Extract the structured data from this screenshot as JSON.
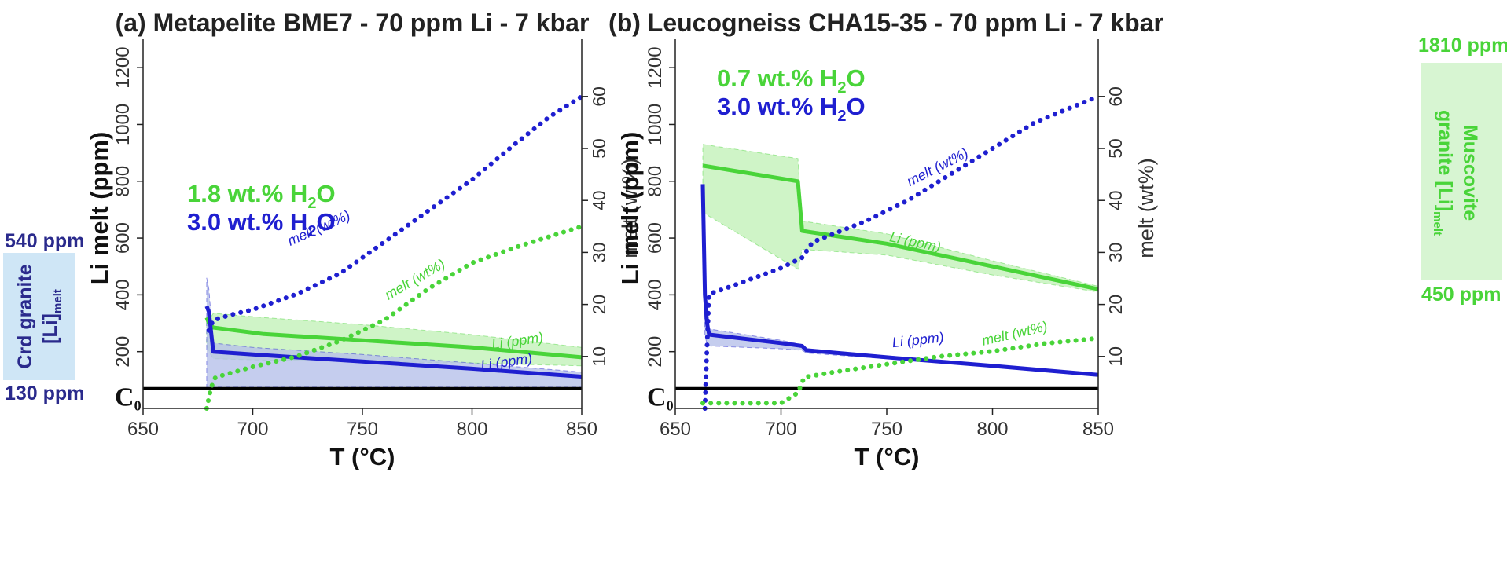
{
  "colors": {
    "green": "#49d439",
    "blue": "#1f1fd0",
    "navy": "#2a2a8c",
    "green_fill": "#bff0b4",
    "blue_fill": "#b7c0ea",
    "side_fill": "#cfe6f6"
  },
  "c0": {
    "label_main": "C",
    "label_sub": "0",
    "value": 70
  },
  "side_left": {
    "top_value": "540 ppm",
    "bottom_value": "130 ppm",
    "label_line1": "Crd granite",
    "label_line2_main": "[Li]",
    "label_line2_sub": "melt",
    "range": [
      130,
      540
    ]
  },
  "side_right": {
    "top_value": "1810 ppm",
    "bottom_value": "450 ppm",
    "label_line1": "Muscovite",
    "label_line2_main": "granite [Li]",
    "label_line2_sub": "melt",
    "range": [
      450,
      1810
    ]
  },
  "chart_data": [
    {
      "type": "line",
      "panel": "a",
      "title": "(a) Metapelite BME7 - 70 ppm Li - 7 kbar",
      "xlabel": "T (°C)",
      "ylabel": "Li melt (ppm)",
      "y2label": "melt (wt%)",
      "xlim": [
        650,
        850
      ],
      "ylim": [
        0,
        1300
      ],
      "y2lim": [
        0,
        71
      ],
      "xticks": [
        650,
        700,
        750,
        800,
        850
      ],
      "yticks": [
        200,
        400,
        600,
        800,
        1000,
        1200
      ],
      "y2ticks": [
        10,
        20,
        30,
        40,
        50,
        60
      ],
      "legend": [
        {
          "main": "1.8 wt.% H",
          "sub": "2",
          "tail": "O",
          "color_key": "green"
        },
        {
          "main": "3.0 wt.% H",
          "sub": "2",
          "tail": "O",
          "color_key": "blue"
        }
      ],
      "legend_position": "middle-left",
      "annotations": [
        {
          "text": "melt (wt%)",
          "color_key": "blue",
          "x": 731,
          "y": 620,
          "angle": -24
        },
        {
          "text": "melt (wt%)",
          "color_key": "green",
          "x": 775,
          "y": 440,
          "angle": -30
        },
        {
          "text": "Li (ppm)",
          "color_key": "green",
          "x": 821,
          "y": 222,
          "angle": -8
        },
        {
          "text": "Li (ppm)",
          "color_key": "blue",
          "x": 816,
          "y": 148,
          "angle": -8
        }
      ],
      "series": [
        {
          "name": "Li (ppm)",
          "h2o": "1.8 wt.% H2O",
          "axis": "left",
          "style": "solid",
          "color_key": "green",
          "x": [
            679,
            680,
            682,
            705,
            750,
            800,
            850
          ],
          "y": [
            320,
            300,
            285,
            262,
            240,
            215,
            180
          ],
          "band_upper": [
            320,
            310,
            335,
            320,
            295,
            260,
            215
          ],
          "band_lower": [
            220,
            200,
            175,
            170,
            165,
            160,
            150
          ]
        },
        {
          "name": "Li (ppm)",
          "h2o": "3.0 wt.% H2O",
          "axis": "left",
          "style": "solid",
          "color_key": "blue",
          "x": [
            679,
            680,
            682,
            700,
            750,
            800,
            850
          ],
          "y": [
            360,
            340,
            200,
            190,
            165,
            140,
            112
          ],
          "band_upper": [
            460,
            420,
            230,
            215,
            190,
            160,
            128
          ],
          "band_lower": [
            70,
            72,
            75,
            75,
            75,
            75,
            75
          ]
        },
        {
          "name": "melt (wt%)",
          "h2o": "3.0 wt.% H2O",
          "axis": "right",
          "style": "dotted",
          "color_key": "blue",
          "x": [
            680,
            682,
            690,
            700,
            720,
            740,
            760,
            780,
            800,
            820,
            835,
            850
          ],
          "y": [
            15,
            17,
            18,
            19,
            22,
            26,
            32,
            38,
            44,
            51,
            56,
            60
          ]
        },
        {
          "name": "melt (wt%)",
          "h2o": "1.8 wt.% H2O",
          "axis": "right",
          "style": "dotted",
          "color_key": "green",
          "x": [
            679,
            680,
            681,
            683,
            700,
            720,
            740,
            760,
            780,
            800,
            820,
            835,
            850
          ],
          "y": [
            0,
            2,
            4,
            6,
            8,
            10,
            13,
            17,
            23,
            28,
            31,
            33,
            35
          ]
        }
      ]
    },
    {
      "type": "line",
      "panel": "b",
      "title": "(b) Leucogneiss CHA15-35 - 70 ppm Li - 7 kbar",
      "xlabel": "T (°C)",
      "ylabel": "Li melt (ppm)",
      "y2label": "melt (wt%)",
      "xlim": [
        650,
        850
      ],
      "ylim": [
        0,
        1300
      ],
      "y2lim": [
        0,
        71
      ],
      "xticks": [
        650,
        700,
        750,
        800,
        850
      ],
      "yticks": [
        200,
        400,
        600,
        800,
        1000,
        1200
      ],
      "y2ticks": [
        10,
        20,
        30,
        40,
        50,
        60
      ],
      "legend": [
        {
          "main": "0.7 wt.% H",
          "sub": "2",
          "tail": "O",
          "color_key": "green"
        },
        {
          "main": "3.0 wt.% H",
          "sub": "2",
          "tail": "O",
          "color_key": "blue"
        }
      ],
      "legend_position": "top-left",
      "annotations": [
        {
          "text": "melt (wt%)",
          "color_key": "blue",
          "x": 775,
          "y": 835,
          "angle": -27
        },
        {
          "text": "Li (ppm)",
          "color_key": "green",
          "x": 763,
          "y": 570,
          "angle": 12
        },
        {
          "text": "Li (ppm)",
          "color_key": "blue",
          "x": 765,
          "y": 225,
          "angle": -6
        },
        {
          "text": "melt (wt%)",
          "color_key": "green",
          "x": 811,
          "y": 248,
          "angle": -13
        }
      ],
      "series": [
        {
          "name": "Li (ppm)",
          "h2o": "0.7 wt.% H2O",
          "axis": "left",
          "style": "solid",
          "color_key": "green",
          "x": [
            663,
            708,
            710,
            750,
            800,
            850
          ],
          "y": [
            855,
            800,
            625,
            580,
            500,
            420
          ],
          "band_upper": [
            930,
            880,
            660,
            615,
            520,
            430
          ],
          "band_lower": [
            690,
            490,
            560,
            540,
            470,
            410
          ]
        },
        {
          "name": "Li (ppm)",
          "h2o": "3.0 wt.% H2O",
          "axis": "left",
          "style": "solid",
          "color_key": "blue",
          "x": [
            663,
            664,
            665,
            666,
            700,
            710,
            712,
            750,
            800,
            850
          ],
          "y": [
            790,
            400,
            300,
            260,
            230,
            220,
            205,
            180,
            150,
            118
          ],
          "band_upper": [
            790,
            480,
            360,
            280,
            240,
            225,
            210,
            185,
            155,
            120
          ],
          "band_lower": [
            600,
            260,
            225,
            220,
            210,
            205,
            195,
            175,
            148,
            115
          ]
        },
        {
          "name": "melt (wt%)",
          "h2o": "3.0 wt.% H2O",
          "axis": "right",
          "style": "dotted",
          "color_key": "blue",
          "x": [
            664,
            665,
            666,
            680,
            700,
            710,
            715,
            740,
            760,
            780,
            800,
            820,
            850
          ],
          "y": [
            0,
            12,
            22,
            24,
            27,
            29,
            32,
            36,
            40,
            45,
            50,
            55,
            60
          ]
        },
        {
          "name": "melt (wt%)",
          "h2o": "0.7 wt.% H2O",
          "axis": "right",
          "style": "dotted",
          "color_key": "green",
          "x": [
            663,
            700,
            708,
            711,
            725,
            750,
            775,
            800,
            825,
            850
          ],
          "y": [
            1,
            1,
            3,
            6,
            7,
            8.5,
            10,
            11,
            12.5,
            13.5
          ]
        }
      ]
    }
  ]
}
